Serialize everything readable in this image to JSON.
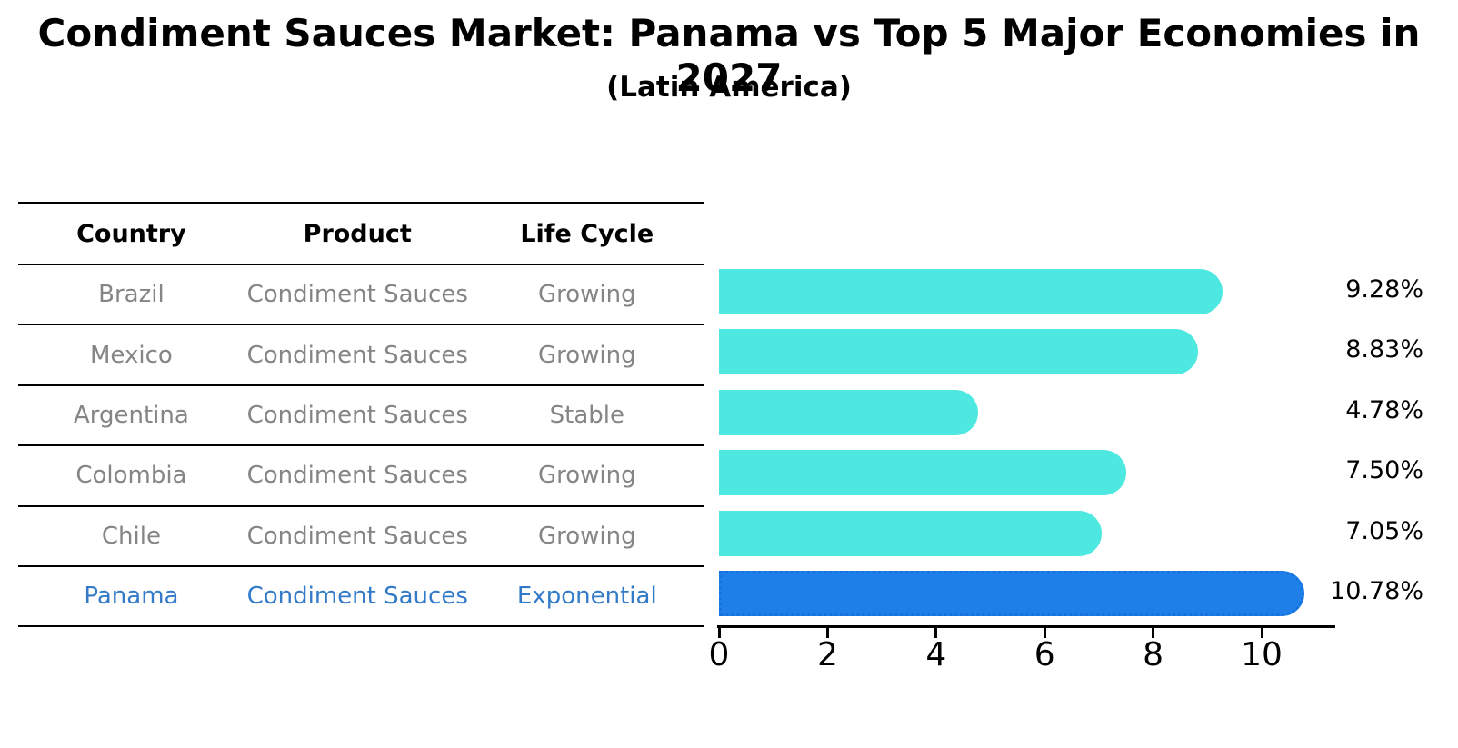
{
  "title": "Condiment Sauces Market: Panama vs Top 5 Major Economies in 2027",
  "subtitle": "(Latin America)",
  "table": {
    "headers": [
      "Country",
      "Product",
      "Life Cycle"
    ],
    "rows": [
      {
        "country": "Brazil",
        "product": "Condiment Sauces",
        "life_cycle": "Growing",
        "highlight": false
      },
      {
        "country": "Mexico",
        "product": "Condiment Sauces",
        "life_cycle": "Growing",
        "highlight": false
      },
      {
        "country": "Argentina",
        "product": "Condiment Sauces",
        "life_cycle": "Stable",
        "highlight": false
      },
      {
        "country": "Colombia",
        "product": "Condiment Sauces",
        "life_cycle": "Growing",
        "highlight": false
      },
      {
        "country": "Chile",
        "product": "Condiment Sauces",
        "life_cycle": "Growing",
        "highlight": false
      },
      {
        "country": "Panama",
        "product": "Condiment Sauces",
        "life_cycle": "Exponential",
        "highlight": true
      }
    ]
  },
  "chart_data": {
    "type": "bar",
    "orientation": "horizontal",
    "title": "Condiment Sauces Market: Panama vs Top 5 Major Economies in 2027",
    "subtitle": "(Latin America)",
    "categories": [
      "Brazil",
      "Mexico",
      "Argentina",
      "Colombia",
      "Chile",
      "Panama"
    ],
    "values": [
      9.28,
      8.83,
      4.78,
      7.5,
      7.05,
      10.78
    ],
    "value_labels": [
      "9.28%",
      "8.83%",
      "4.78%",
      "7.50%",
      "7.05%",
      "10.78%"
    ],
    "xticks": [
      0,
      2,
      4,
      6,
      8,
      10
    ],
    "xlim": [
      0,
      11.32
    ],
    "highlight_index": 5,
    "grid": false,
    "legend": false
  },
  "colors": {
    "bar": "#4de8e0",
    "highlight_bar": "#1e7fe8",
    "highlight_text": "#337ac8",
    "table_text": "#858585",
    "header_text": "#000000",
    "axis": "#000000"
  }
}
